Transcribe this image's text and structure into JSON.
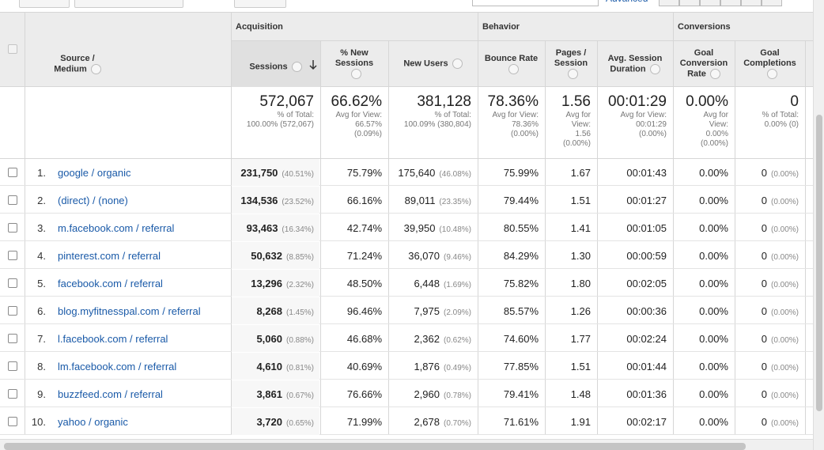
{
  "toolbar": {
    "advanced": "Advanced"
  },
  "groups": [
    "Acquisition",
    "Behavior",
    "Conversions"
  ],
  "columns": [
    "Source / Medium",
    "Sessions",
    "% New Sessions",
    "New Users",
    "Bounce Rate",
    "Pages / Session",
    "Avg. Session Duration",
    "Goal Conversion Rate",
    "Goal Completions"
  ],
  "totals": [
    {
      "value": "572,067",
      "sub": [
        "% of Total:",
        "100.00% (572,067)"
      ]
    },
    {
      "value": "66.62%",
      "sub": [
        "Avg for View:",
        "66.57%",
        "(0.09%)"
      ]
    },
    {
      "value": "381,128",
      "sub": [
        "% of Total:",
        "100.09% (380,804)"
      ]
    },
    {
      "value": "78.36%",
      "sub": [
        "Avg for View:",
        "78.36%",
        "(0.00%)"
      ]
    },
    {
      "value": "1.56",
      "sub": [
        "Avg for",
        "View:",
        "1.56",
        "(0.00%)"
      ]
    },
    {
      "value": "00:01:29",
      "sub": [
        "Avg for View:",
        "00:01:29",
        "(0.00%)"
      ]
    },
    {
      "value": "0.00%",
      "sub": [
        "Avg for",
        "View:",
        "0.00%",
        "(0.00%)"
      ]
    },
    {
      "value": "0",
      "sub": [
        "% of Total:",
        "0.00% (0)"
      ]
    }
  ],
  "rows": [
    {
      "index": "1.",
      "source": "google / organic",
      "cells": [
        {
          "v": "231,750",
          "p": "(40.51%)"
        },
        {
          "v": "75.79%"
        },
        {
          "v": "175,640",
          "p": "(46.08%)"
        },
        {
          "v": "75.99%"
        },
        {
          "v": "1.67"
        },
        {
          "v": "00:01:43"
        },
        {
          "v": "0.00%"
        },
        {
          "v": "0",
          "p": "(0.00%)"
        }
      ]
    },
    {
      "index": "2.",
      "source": "(direct) / (none)",
      "cells": [
        {
          "v": "134,536",
          "p": "(23.52%)"
        },
        {
          "v": "66.16%"
        },
        {
          "v": "89,011",
          "p": "(23.35%)"
        },
        {
          "v": "79.44%"
        },
        {
          "v": "1.51"
        },
        {
          "v": "00:01:27"
        },
        {
          "v": "0.00%"
        },
        {
          "v": "0",
          "p": "(0.00%)"
        }
      ]
    },
    {
      "index": "3.",
      "source": "m.facebook.com / referral",
      "cells": [
        {
          "v": "93,463",
          "p": "(16.34%)"
        },
        {
          "v": "42.74%"
        },
        {
          "v": "39,950",
          "p": "(10.48%)"
        },
        {
          "v": "80.55%"
        },
        {
          "v": "1.41"
        },
        {
          "v": "00:01:05"
        },
        {
          "v": "0.00%"
        },
        {
          "v": "0",
          "p": "(0.00%)"
        }
      ]
    },
    {
      "index": "4.",
      "source": "pinterest.com / referral",
      "cells": [
        {
          "v": "50,632",
          "p": "(8.85%)"
        },
        {
          "v": "71.24%"
        },
        {
          "v": "36,070",
          "p": "(9.46%)"
        },
        {
          "v": "84.29%"
        },
        {
          "v": "1.30"
        },
        {
          "v": "00:00:59"
        },
        {
          "v": "0.00%"
        },
        {
          "v": "0",
          "p": "(0.00%)"
        }
      ]
    },
    {
      "index": "5.",
      "source": "facebook.com / referral",
      "cells": [
        {
          "v": "13,296",
          "p": "(2.32%)"
        },
        {
          "v": "48.50%"
        },
        {
          "v": "6,448",
          "p": "(1.69%)"
        },
        {
          "v": "75.82%"
        },
        {
          "v": "1.80"
        },
        {
          "v": "00:02:05"
        },
        {
          "v": "0.00%"
        },
        {
          "v": "0",
          "p": "(0.00%)"
        }
      ]
    },
    {
      "index": "6.",
      "source": "blog.myfitnesspal.com / referral",
      "cells": [
        {
          "v": "8,268",
          "p": "(1.45%)"
        },
        {
          "v": "96.46%"
        },
        {
          "v": "7,975",
          "p": "(2.09%)"
        },
        {
          "v": "85.57%"
        },
        {
          "v": "1.26"
        },
        {
          "v": "00:00:36"
        },
        {
          "v": "0.00%"
        },
        {
          "v": "0",
          "p": "(0.00%)"
        }
      ]
    },
    {
      "index": "7.",
      "source": "l.facebook.com / referral",
      "cells": [
        {
          "v": "5,060",
          "p": "(0.88%)"
        },
        {
          "v": "46.68%"
        },
        {
          "v": "2,362",
          "p": "(0.62%)"
        },
        {
          "v": "74.60%"
        },
        {
          "v": "1.77"
        },
        {
          "v": "00:02:24"
        },
        {
          "v": "0.00%"
        },
        {
          "v": "0",
          "p": "(0.00%)"
        }
      ]
    },
    {
      "index": "8.",
      "source": "lm.facebook.com / referral",
      "cells": [
        {
          "v": "4,610",
          "p": "(0.81%)"
        },
        {
          "v": "40.69%"
        },
        {
          "v": "1,876",
          "p": "(0.49%)"
        },
        {
          "v": "77.85%"
        },
        {
          "v": "1.51"
        },
        {
          "v": "00:01:44"
        },
        {
          "v": "0.00%"
        },
        {
          "v": "0",
          "p": "(0.00%)"
        }
      ]
    },
    {
      "index": "9.",
      "source": "buzzfeed.com / referral",
      "cells": [
        {
          "v": "3,861",
          "p": "(0.67%)"
        },
        {
          "v": "76.66%"
        },
        {
          "v": "2,960",
          "p": "(0.78%)"
        },
        {
          "v": "79.41%"
        },
        {
          "v": "1.48"
        },
        {
          "v": "00:01:36"
        },
        {
          "v": "0.00%"
        },
        {
          "v": "0",
          "p": "(0.00%)"
        }
      ]
    },
    {
      "index": "10.",
      "source": "yahoo / organic",
      "cells": [
        {
          "v": "3,720",
          "p": "(0.65%)"
        },
        {
          "v": "71.99%"
        },
        {
          "v": "2,678",
          "p": "(0.70%)"
        },
        {
          "v": "71.61%"
        },
        {
          "v": "1.91"
        },
        {
          "v": "00:02:17"
        },
        {
          "v": "0.00%"
        },
        {
          "v": "0",
          "p": "(0.00%)"
        }
      ]
    }
  ]
}
